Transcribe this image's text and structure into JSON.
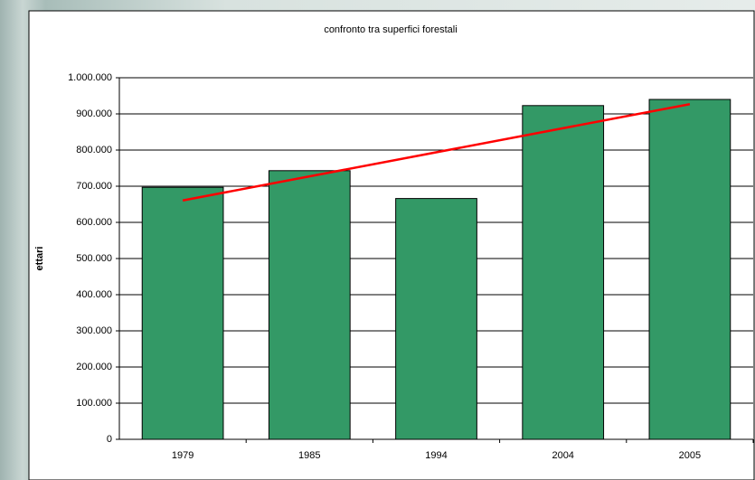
{
  "chart_data": {
    "type": "bar",
    "title": "confronto tra superfici forestali",
    "ylabel": "ettari",
    "categories": [
      "1979",
      "1985",
      "1994",
      "2004",
      "2005"
    ],
    "values": [
      697000,
      743000,
      666000,
      923000,
      940000
    ],
    "color": "#339966",
    "trendline": {
      "color": "#ff0000",
      "values": [
        660600,
        927000
      ]
    },
    "ylim": [
      0,
      1000000
    ],
    "yticks": [
      0,
      {
        "value": 100000,
        "label": "100.000"
      },
      {
        "value": 200000,
        "label": "200.000"
      },
      {
        "value": 300000,
        "label": "300.000"
      },
      {
        "value": 400000,
        "label": "400.000"
      },
      {
        "value": 500000,
        "label": "500.000"
      },
      {
        "value": 600000,
        "label": "600.000"
      },
      {
        "value": 700000,
        "label": "700.000"
      },
      {
        "value": 800000,
        "label": "800.000"
      },
      {
        "value": 900000,
        "label": "900.000"
      },
      {
        "value": 1000000,
        "label": "1.000.000"
      }
    ],
    "grid": true
  }
}
